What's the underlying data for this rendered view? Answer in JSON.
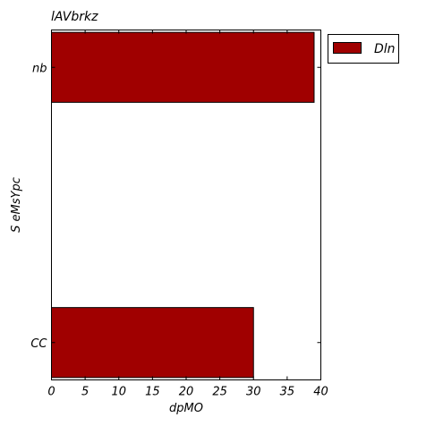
{
  "chart_data": {
    "type": "bar",
    "orientation": "horizontal",
    "title": "lAVbrkz",
    "xlabel": "dpMO",
    "ylabel": "S eMsYpc",
    "categories": [
      "CC",
      "nb"
    ],
    "series": [
      {
        "name": "Dln",
        "values": [
          30,
          39
        ],
        "color": "#a00000"
      }
    ],
    "xlim": [
      0,
      40
    ],
    "xticks": [
      0,
      5,
      10,
      15,
      20,
      25,
      30,
      35,
      40
    ],
    "grid": false,
    "legend_position": "top-right-outside"
  },
  "colors": {
    "bar_fill": "#a00000",
    "bar_edge": "#000000",
    "axis": "#000000",
    "background": "#ffffff"
  }
}
